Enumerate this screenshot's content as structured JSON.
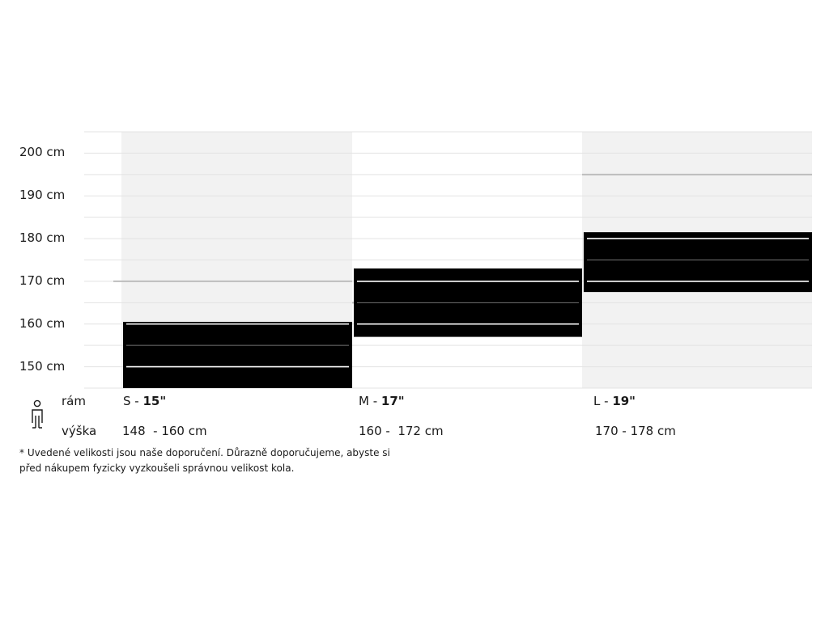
{
  "chart_data": {
    "type": "bar",
    "title": "",
    "xlabel": "",
    "ylabel": "",
    "ylim": [
      145,
      205
    ],
    "y_ticks": [
      "150 cm",
      "160 cm",
      "170 cm",
      "180 cm",
      "190 cm",
      "200 cm"
    ],
    "y_tick_values": [
      150,
      160,
      170,
      180,
      190,
      200
    ],
    "grid": true,
    "categories": [
      "S",
      "M",
      "L"
    ],
    "columns": [
      {
        "size_letter": "S",
        "frame_size": "15\"",
        "height_text": "148  - 160 cm",
        "bar_range": [
          145,
          160.5
        ],
        "column_background": "#f2f2f2",
        "grey_mark": 170
      },
      {
        "size_letter": "M",
        "frame_size": "17\"",
        "height_text": "160 -  172 cm",
        "bar_range": [
          157,
          173
        ],
        "column_background": "#ffffff",
        "grey_mark": 165
      },
      {
        "size_letter": "L",
        "frame_size": "19\"",
        "height_text": "170 - 178 cm",
        "bar_range": [
          167.5,
          181.5
        ],
        "column_background": "#f2f2f2",
        "grey_mark": 195
      }
    ]
  },
  "row_labels": {
    "frame": "rám",
    "height": "výška"
  },
  "separator": " - ",
  "note_lines": [
    "* Uvedené velikosti jsou naše doporučení. Důrazně doporučujeme, abyste si",
    "před nákupem fyzicky vyzkoušeli správnou velikost kola."
  ],
  "icons": {
    "rider": "person-icon"
  },
  "colors": {
    "bar": "#000000",
    "shade": "#f2f2f2",
    "grid": "#e3e3e3",
    "mark": "#bdbdbd",
    "bar_line": "#ffffff"
  }
}
